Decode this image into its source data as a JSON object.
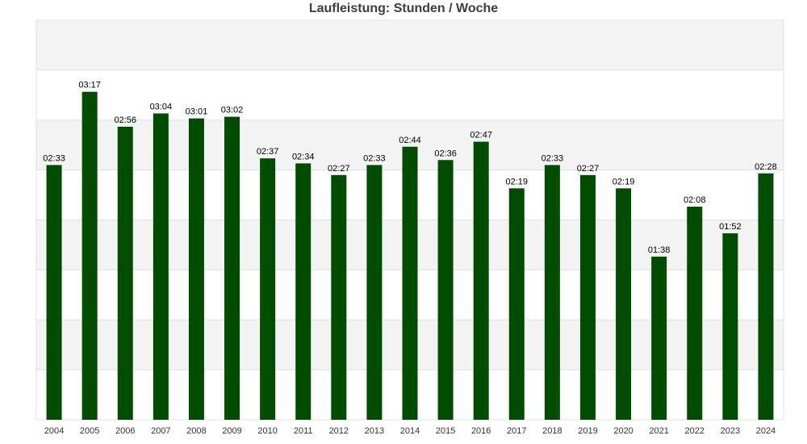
{
  "chart_data": {
    "type": "bar",
    "title": "Laufleistung: Stunden / Woche",
    "xlabel": "",
    "ylabel": "",
    "categories": [
      "2004",
      "2005",
      "2006",
      "2007",
      "2008",
      "2009",
      "2010",
      "2011",
      "2012",
      "2013",
      "2014",
      "2015",
      "2016",
      "2017",
      "2018",
      "2019",
      "2020",
      "2021",
      "2022",
      "2023",
      "2024"
    ],
    "values": [
      153,
      197,
      176,
      184,
      181,
      182,
      157,
      154,
      147,
      153,
      164,
      156,
      167,
      139,
      153,
      147,
      139,
      98,
      128,
      112,
      148
    ],
    "value_labels": [
      "02:33",
      "03:17",
      "02:56",
      "03:04",
      "03:01",
      "03:02",
      "02:37",
      "02:34",
      "02:27",
      "02:33",
      "02:44",
      "02:36",
      "02:47",
      "02:19",
      "02:33",
      "02:27",
      "02:19",
      "01:38",
      "02:08",
      "01:52",
      "02:28"
    ],
    "value_unit": "minutes",
    "ylim": [
      0,
      240
    ],
    "y_tick_labels_shown": false,
    "grid": true,
    "grid_style": "alternating bands",
    "legend": "none",
    "colors": {
      "bar": "#004d00",
      "band": "#f3f3f4",
      "gridline": "#e0e0e0",
      "title": "#3d3d3d"
    }
  }
}
